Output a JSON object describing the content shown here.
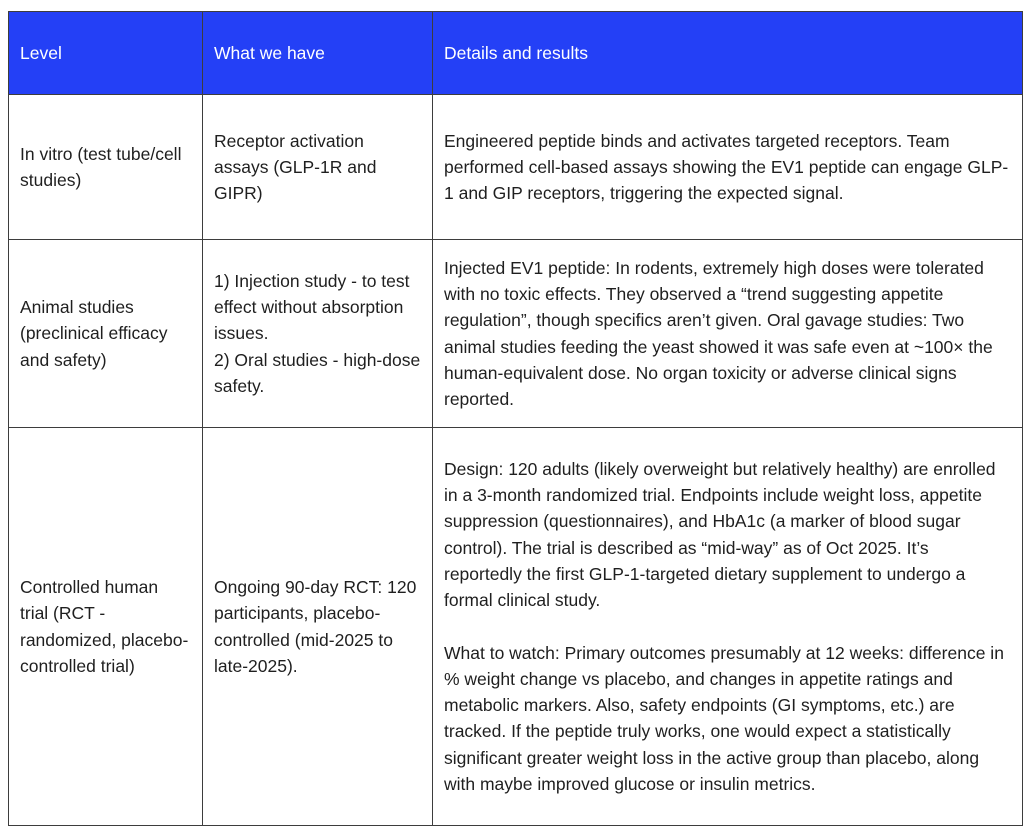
{
  "table": {
    "accent_color": "#2440f6",
    "border_color": "#3d3d3d",
    "header_text_color": "#ffffff",
    "body_text_color": "#1f1f1f",
    "header": {
      "level": "Level",
      "what": "What we have",
      "details": "Details and results"
    },
    "rows": [
      {
        "level": "In vitro (test tube/cell studies)",
        "what": "Receptor activation assays (GLP-1R and GIPR)",
        "details": "Engineered peptide binds and activates targeted receptors. Team performed cell-based assays showing the EV1 peptide can engage GLP-1 and GIP receptors, triggering the expected signal."
      },
      {
        "level": "Animal studies (preclinical efficacy and safety)",
        "what": "1) Injection study - to test effect without absorption issues.\n2) Oral studies - high-dose safety.",
        "details": "Injected EV1 peptide: In rodents, extremely high doses were tolerated with no toxic effects. They observed a “trend suggesting appetite regulation”, though specifics aren’t given. Oral gavage studies: Two animal studies feeding the yeast showed it was safe even at ~100× the human-equivalent dose. No organ toxicity or adverse clinical signs reported."
      },
      {
        "level": "Controlled human trial (RCT - randomized, placebo-controlled trial)",
        "what": "Ongoing 90-day RCT: 120 participants, placebo-controlled (mid-2025 to late-2025).",
        "details": "Design: 120 adults (likely overweight but relatively healthy) are enrolled in a 3-month randomized trial. Endpoints include weight loss, appetite suppression (questionnaires), and HbA1c (a marker of blood sugar control). The trial is described as “mid-way” as of Oct 2025. It’s reportedly the first GLP-1-targeted dietary supplement to undergo a formal clinical study.\n\nWhat to watch: Primary outcomes presumably at 12 weeks: difference in % weight change vs placebo, and changes in appetite ratings and metabolic markers. Also, safety endpoints (GI symptoms, etc.) are tracked. If the peptide truly works, one would expect a statistically significant greater weight loss in the active group than placebo, along with maybe improved glucose or insulin metrics."
      }
    ]
  }
}
